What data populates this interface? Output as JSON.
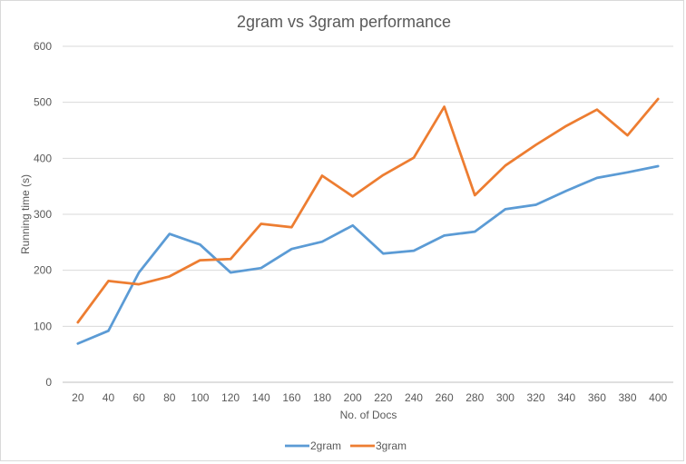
{
  "chart_data": {
    "type": "line",
    "title": "2gram vs 3gram performance",
    "xlabel": "No. of Docs",
    "ylabel": "Running time (s)",
    "categories": [
      20,
      40,
      60,
      80,
      100,
      120,
      140,
      160,
      180,
      200,
      220,
      240,
      260,
      280,
      300,
      320,
      340,
      360,
      380,
      400
    ],
    "ylim": [
      0,
      600
    ],
    "yticks": [
      0,
      100,
      200,
      300,
      400,
      500,
      600
    ],
    "grid": true,
    "legend_position": "bottom",
    "series": [
      {
        "name": "2gram",
        "color": "#5b9bd5",
        "values": [
          69,
          92,
          196,
          265,
          246,
          196,
          204,
          238,
          251,
          280,
          230,
          235,
          262,
          269,
          309,
          317,
          342,
          365,
          375,
          386
        ]
      },
      {
        "name": "3gram",
        "color": "#ed7d31",
        "values": [
          107,
          181,
          175,
          189,
          218,
          220,
          283,
          277,
          369,
          332,
          370,
          401,
          492,
          334,
          387,
          424,
          458,
          487,
          441,
          506
        ]
      }
    ]
  }
}
